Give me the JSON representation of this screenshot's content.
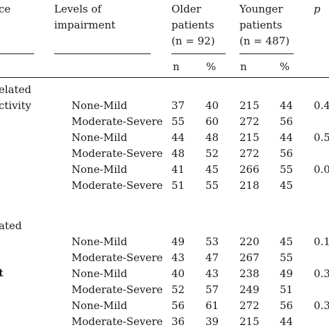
{
  "header": {
    "col_first_fragment": "ce",
    "levels_line1": "Levels of",
    "levels_line2": "impairment",
    "older_line1": "Older",
    "older_line2": "patients",
    "older_n": "(n = 92)",
    "younger_line1": "Younger",
    "younger_line2": "patients",
    "younger_n": "(n = 487)",
    "p_label": "p",
    "sub_n1": "n",
    "sub_pct1": "%",
    "sub_n2": "n",
    "sub_pct2": "%"
  },
  "group_labels": {
    "g1_line1": "elated",
    "g1_line2": "ctivity",
    "g2_line1": "ated",
    "g3_fragment": "t"
  },
  "rows": [
    {
      "level": "None-Mild",
      "older_n": "37",
      "older_pct": "40",
      "younger_n": "215",
      "younger_pct": "44",
      "p": "0.4"
    },
    {
      "level": "Moderate-Severe",
      "older_n": "55",
      "older_pct": "60",
      "younger_n": "272",
      "younger_pct": "56",
      "p": ""
    },
    {
      "level": "None-Mild",
      "older_n": "44",
      "older_pct": "48",
      "younger_n": "215",
      "younger_pct": "44",
      "p": "0.5"
    },
    {
      "level": "Moderate-Severe",
      "older_n": "48",
      "older_pct": "52",
      "younger_n": "272",
      "younger_pct": "56",
      "p": ""
    },
    {
      "level": "None-Mild",
      "older_n": "41",
      "older_pct": "45",
      "younger_n": "266",
      "younger_pct": "55",
      "p": "0.0"
    },
    {
      "level": "Moderate-Severe",
      "older_n": "51",
      "older_pct": "55",
      "younger_n": "218",
      "younger_pct": "45",
      "p": ""
    },
    {
      "level": "None-Mild",
      "older_n": "49",
      "older_pct": "53",
      "younger_n": "220",
      "younger_pct": "45",
      "p": "0.1"
    },
    {
      "level": "Moderate-Severe",
      "older_n": "43",
      "older_pct": "47",
      "younger_n": "267",
      "younger_pct": "55",
      "p": ""
    },
    {
      "level": "None-Mild",
      "older_n": "40",
      "older_pct": "43",
      "younger_n": "238",
      "younger_pct": "49",
      "p": "0.3"
    },
    {
      "level": "Moderate-Severe",
      "older_n": "52",
      "older_pct": "57",
      "younger_n": "249",
      "younger_pct": "51",
      "p": ""
    },
    {
      "level": "None-Mild",
      "older_n": "56",
      "older_pct": "61",
      "younger_n": "272",
      "younger_pct": "56",
      "p": "0.3"
    },
    {
      "level": "Moderate-Severe",
      "older_n": "36",
      "older_pct": "39",
      "younger_n": "215",
      "younger_pct": "44",
      "p": ""
    }
  ]
}
